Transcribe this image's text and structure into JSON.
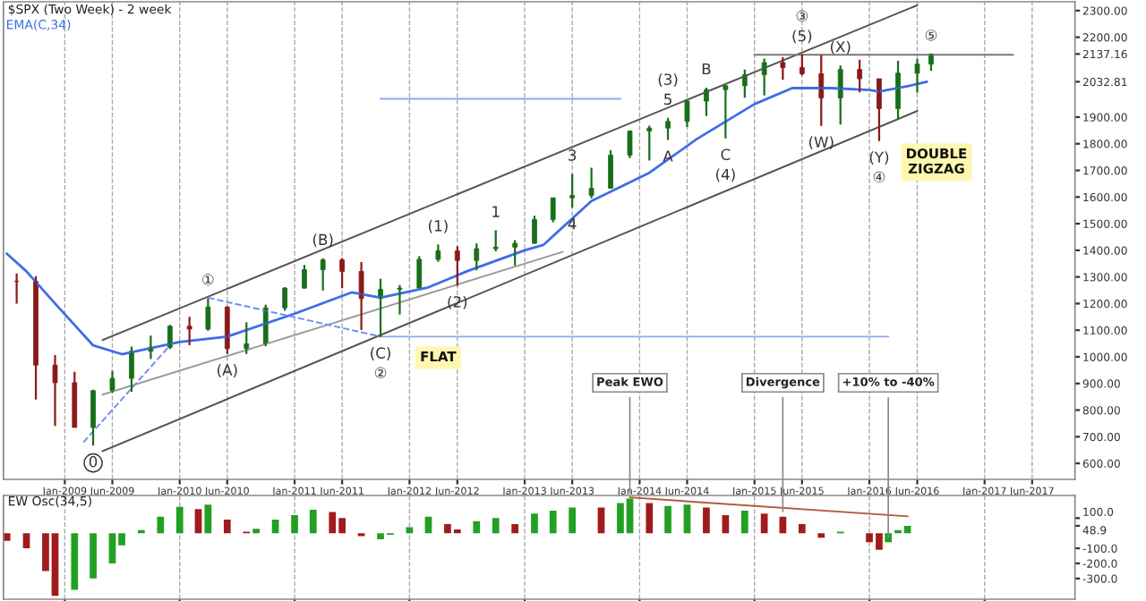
{
  "chart_data": [
    {
      "type": "candlestick",
      "title": "$SPX (Two Week) - 2 week",
      "x": [
        "2008-08",
        "2008-10",
        "2008-12",
        "2009-02",
        "2009-04",
        "2009-06",
        "2009-08",
        "2009-10",
        "2009-12",
        "2010-02",
        "2010-04",
        "2010-06",
        "2010-08",
        "2010-10",
        "2010-12",
        "2011-02",
        "2011-04",
        "2011-06",
        "2011-08",
        "2011-10",
        "2011-12",
        "2012-02",
        "2012-04",
        "2012-06",
        "2012-08",
        "2012-10",
        "2012-12",
        "2013-02",
        "2013-04",
        "2013-06",
        "2013-08",
        "2013-10",
        "2013-12",
        "2014-02",
        "2014-04",
        "2014-06",
        "2014-08",
        "2014-10",
        "2014-12",
        "2015-02",
        "2015-04",
        "2015-06",
        "2015-08",
        "2015-10",
        "2015-12",
        "2016-02",
        "2016-04",
        "2016-06",
        "2016-07-15"
      ],
      "ohlc": [
        [
          1284,
          1313,
          1200,
          1283
        ],
        [
          1283,
          1303,
          840,
          969
        ],
        [
          969,
          1007,
          741,
          903
        ],
        [
          903,
          944,
          735,
          735
        ],
        [
          735,
          877,
          667,
          873
        ],
        [
          873,
          947,
          866,
          919
        ],
        [
          919,
          1039,
          869,
          1021
        ],
        [
          1021,
          1080,
          992,
          1036
        ],
        [
          1036,
          1120,
          1029,
          1115
        ],
        [
          1115,
          1150,
          1044,
          1104
        ],
        [
          1104,
          1220,
          1098,
          1187
        ],
        [
          1187,
          1190,
          1011,
          1031
        ],
        [
          1031,
          1130,
          1011,
          1049
        ],
        [
          1049,
          1196,
          1040,
          1184
        ],
        [
          1184,
          1262,
          1173,
          1258
        ],
        [
          1258,
          1345,
          1257,
          1327
        ],
        [
          1327,
          1370,
          1249,
          1364
        ],
        [
          1364,
          1370,
          1258,
          1321
        ],
        [
          1321,
          1356,
          1101,
          1219
        ],
        [
          1219,
          1293,
          1075,
          1253
        ],
        [
          1253,
          1270,
          1159,
          1258
        ],
        [
          1258,
          1378,
          1258,
          1366
        ],
        [
          1366,
          1422,
          1357,
          1398
        ],
        [
          1398,
          1415,
          1267,
          1362
        ],
        [
          1362,
          1426,
          1325,
          1406
        ],
        [
          1406,
          1475,
          1396,
          1412
        ],
        [
          1412,
          1438,
          1343,
          1426
        ],
        [
          1426,
          1530,
          1426,
          1515
        ],
        [
          1515,
          1598,
          1505,
          1597
        ],
        [
          1597,
          1687,
          1560,
          1606
        ],
        [
          1606,
          1710,
          1595,
          1633
        ],
        [
          1633,
          1776,
          1633,
          1757
        ],
        [
          1757,
          1849,
          1746,
          1848
        ],
        [
          1848,
          1868,
          1737,
          1859
        ],
        [
          1859,
          1897,
          1814,
          1884
        ],
        [
          1884,
          1968,
          1863,
          1960
        ],
        [
          1960,
          2011,
          1904,
          2003
        ],
        [
          2003,
          2019,
          1820,
          2018
        ],
        [
          2018,
          2079,
          1973,
          2059
        ],
        [
          2059,
          2120,
          1981,
          2105
        ],
        [
          2105,
          2125,
          2040,
          2086
        ],
        [
          2086,
          2135,
          2057,
          2063
        ],
        [
          2063,
          2133,
          1867,
          1972
        ],
        [
          1972,
          2094,
          1872,
          2079
        ],
        [
          2079,
          2116,
          1993,
          2044
        ],
        [
          2044,
          2044,
          1810,
          1932
        ],
        [
          1932,
          2111,
          1891,
          2065
        ],
        [
          2065,
          2120,
          1992,
          2099
        ],
        [
          2099,
          2137.16,
          2074,
          2137.16
        ]
      ],
      "colors": [
        "#8b1a1a",
        "#8b1a1a",
        "#8b1a1a",
        "#8b1a1a",
        "#1a6e1a",
        "#1a6e1a",
        "#1a6e1a",
        "#1a6e1a",
        "#1a6e1a",
        "#8b1a1a",
        "#1a6e1a",
        "#8b1a1a",
        "#1a6e1a",
        "#1a6e1a",
        "#1a6e1a",
        "#1a6e1a",
        "#1a6e1a",
        "#8b1a1a",
        "#8b1a1a",
        "#1a6e1a",
        "#1a6e1a",
        "#1a6e1a",
        "#1a6e1a",
        "#8b1a1a",
        "#1a6e1a",
        "#1a6e1a",
        "#1a6e1a",
        "#1a6e1a",
        "#1a6e1a",
        "#1a6e1a",
        "#1a6e1a",
        "#1a6e1a",
        "#1a6e1a",
        "#1a6e1a",
        "#1a6e1a",
        "#1a6e1a",
        "#1a6e1a",
        "#1a6e1a",
        "#1a6e1a",
        "#1a6e1a",
        "#8b1a1a",
        "#8b1a1a",
        "#8b1a1a",
        "#1a6e1a",
        "#8b1a1a",
        "#8b1a1a",
        "#1a6e1a",
        "#1a6e1a",
        "#1a6e1a"
      ],
      "series": [
        {
          "type": "line",
          "name": "EMA(C,34)",
          "color": "#3c6ee6",
          "x": [
            "2008-07",
            "2008-09",
            "2008-12",
            "2009-04",
            "2009-07",
            "2010-01",
            "2010-06",
            "2011-01",
            "2011-07",
            "2011-10",
            "2012-03",
            "2012-07",
            "2013-01",
            "2013-03",
            "2013-08",
            "2014-02",
            "2014-07",
            "2015-01",
            "2015-05",
            "2015-09",
            "2016-01",
            "2016-02",
            "2016-05",
            "2016-07"
          ],
          "values": [
            1387,
            1321,
            1200,
            1043,
            1010,
            1056,
            1076,
            1162,
            1242,
            1222,
            1261,
            1321,
            1400,
            1420,
            1585,
            1691,
            1817,
            1949,
            2009,
            2009,
            2002,
            1996,
            2016,
            2032.81
          ]
        },
        {
          "type": "line",
          "color": "#555555",
          "x": [
            "2009-05",
            "2016-06"
          ],
          "values": [
            1063,
            2320
          ]
        },
        {
          "type": "line",
          "color": "#555555",
          "x": [
            "2009-05",
            "2016-06"
          ],
          "values": [
            646,
            1923
          ]
        },
        {
          "type": "line",
          "color": "#999999",
          "x": [
            "2009-05",
            "2013-05"
          ],
          "values": [
            858,
            1394
          ]
        },
        {
          "type": "line",
          "color": "#777777",
          "x": [
            "2015-01",
            "2017-04"
          ],
          "values": [
            2134,
            2134
          ]
        },
        {
          "type": "line",
          "color": "#8fa8f0",
          "x": [
            "2011-10",
            "2013-11"
          ],
          "values": [
            1969,
            1969
          ]
        },
        {
          "type": "line",
          "color": "#8fa8f0",
          "x": [
            "2011-10",
            "2016-03"
          ],
          "values": [
            1076,
            1076
          ]
        },
        {
          "type": "line",
          "color": "#6f8ff0",
          "line_style": "dashed",
          "x": [
            "2009-03",
            "2009-12"
          ],
          "values": [
            679,
            1043
          ]
        },
        {
          "type": "line",
          "color": "#6f8ff0",
          "line_style": "dashed",
          "x": [
            "2010-04",
            "2011-10"
          ],
          "values": [
            1222,
            1076
          ]
        }
      ],
      "annotations": [
        {
          "text": "0",
          "x": "2009-04",
          "y": 667
        },
        {
          "text": "①",
          "x": "2010-04",
          "y": 1220
        },
        {
          "text": "(A)",
          "x": "2010-06",
          "y": 1011
        },
        {
          "text": "(B)",
          "x": "2011-04",
          "y": 1370
        },
        {
          "text": "(C)",
          "x": "2011-10",
          "y": 1075
        },
        {
          "text": "②",
          "x": "2011-10",
          "y": 1075
        },
        {
          "text": "(1)",
          "x": "2012-04",
          "y": 1422
        },
        {
          "text": "(2)",
          "x": "2012-06",
          "y": 1267
        },
        {
          "text": "1",
          "x": "2012-10",
          "y": 1475
        },
        {
          "text": "3",
          "x": "2013-06",
          "y": 1687
        },
        {
          "text": "4",
          "x": "2013-06",
          "y": 1560
        },
        {
          "text": "5",
          "x": "2014-04",
          "y": 1897
        },
        {
          "text": "(3)",
          "x": "2014-04",
          "y": 1897
        },
        {
          "text": "A",
          "x": "2014-04",
          "y": 1814
        },
        {
          "text": "B",
          "x": "2014-08",
          "y": 2011
        },
        {
          "text": "C",
          "x": "2014-10",
          "y": 1820
        },
        {
          "text": "(4)",
          "x": "2014-10",
          "y": 1820
        },
        {
          "text": "(5)",
          "x": "2015-06",
          "y": 2135
        },
        {
          "text": "③",
          "x": "2015-06",
          "y": 2135
        },
        {
          "text": "(X)",
          "x": "2015-10",
          "y": 2094
        },
        {
          "text": "(W)",
          "x": "2015-08",
          "y": 1867
        },
        {
          "text": "(Y)",
          "x": "2016-02",
          "y": 1810
        },
        {
          "text": "④",
          "x": "2016-02",
          "y": 1810
        },
        {
          "text": "⑤",
          "x": "2016-07-15",
          "y": 2137.16
        },
        {
          "text": "FLAT",
          "x": "2012-04",
          "y": 997
        },
        {
          "text": "DOUBLE\nZIGZAG",
          "x": "2016-08",
          "y": 1731
        }
      ],
      "xlim": [
        "2008-06-20",
        "2017-10-15"
      ],
      "xticks": [
        {
          "value": "2009-01-01",
          "label": "Jan-2009"
        },
        {
          "value": "2009-06-01",
          "label": "Jun-2009"
        },
        {
          "value": "2010-01-01",
          "label": "Jan-2010"
        },
        {
          "value": "2010-06-01",
          "label": "Jun-2010"
        },
        {
          "value": "2011-01-01",
          "label": "Jan-2011"
        },
        {
          "value": "2011-06-01",
          "label": "Jun-2011"
        },
        {
          "value": "2012-01-01",
          "label": "Jan-2012"
        },
        {
          "value": "2012-06-01",
          "label": "Jun-2012"
        },
        {
          "value": "2013-01-01",
          "label": "Jan-2013"
        },
        {
          "value": "2013-06-01",
          "label": "Jun-2013"
        },
        {
          "value": "2014-01-01",
          "label": "Jan-2014"
        },
        {
          "value": "2014-06-01",
          "label": "Jun-2014"
        },
        {
          "value": "2015-01-01",
          "label": "Jan-2015"
        },
        {
          "value": "2015-06-01",
          "label": "Jun-2015"
        },
        {
          "value": "2016-01-01",
          "label": "Jan-2016"
        },
        {
          "value": "2016-06-01",
          "label": "Jun-2016"
        },
        {
          "value": "2017-01-01",
          "label": "Jan-2017"
        },
        {
          "value": "2017-06-01",
          "label": "Jun-2017"
        }
      ],
      "ylim": [
        540,
        2333
      ],
      "yticks": [
        {
          "value": 600,
          "label": "600.00"
        },
        {
          "value": 700,
          "label": "700.00"
        },
        {
          "value": 800,
          "label": "800.00"
        },
        {
          "value": 900,
          "label": "900.00"
        },
        {
          "value": 1000,
          "label": "1000.00"
        },
        {
          "value": 1100,
          "label": "1100.00"
        },
        {
          "value": 1200,
          "label": "1200.00"
        },
        {
          "value": 1300,
          "label": "1300.00"
        },
        {
          "value": 1400,
          "label": "1400.00"
        },
        {
          "value": 1500,
          "label": "1500.00"
        },
        {
          "value": 1600,
          "label": "1600.00"
        },
        {
          "value": 1700,
          "label": "1700.00"
        },
        {
          "value": 1800,
          "label": "1800.00"
        },
        {
          "value": 1900,
          "label": "1900.00"
        },
        {
          "value": 2032.81,
          "label": "2032.81"
        },
        {
          "value": 2137.16,
          "label": "2137.16"
        },
        {
          "value": 2200,
          "label": "2200.00"
        },
        {
          "value": 2300,
          "label": "2300.00"
        }
      ],
      "grid": "x",
      "legend": "top left"
    },
    {
      "type": "bar",
      "title": "EW Osc(34,5)",
      "x": [
        "2008-07",
        "2008-09",
        "2008-11",
        "2008-12",
        "2009-02",
        "2009-04",
        "2009-06",
        "2009-07",
        "2009-09",
        "2009-11",
        "2010-01",
        "2010-03",
        "2010-04",
        "2010-06",
        "2010-08",
        "2010-09",
        "2010-11",
        "2011-01",
        "2011-03",
        "2011-05",
        "2011-06",
        "2011-08",
        "2011-10",
        "2011-11",
        "2012-01",
        "2012-03",
        "2012-05",
        "2012-06",
        "2012-08",
        "2012-10",
        "2012-12",
        "2013-02",
        "2013-04",
        "2013-06",
        "2013-09",
        "2013-11",
        "2013-12",
        "2014-02",
        "2014-04",
        "2014-06",
        "2014-08",
        "2014-10",
        "2014-12",
        "2015-02",
        "2015-04",
        "2015-06",
        "2015-08",
        "2015-10",
        "2016-01",
        "2016-02",
        "2016-03",
        "2016-04",
        "2016-05"
      ],
      "values": [
        -50,
        -100,
        -250,
        -415,
        -375,
        -300,
        -200,
        -80,
        20,
        110,
        175,
        160,
        190,
        90,
        10,
        30,
        90,
        120,
        155,
        140,
        100,
        -20,
        -40,
        -10,
        40,
        110,
        60,
        25,
        80,
        100,
        60,
        130,
        150,
        170,
        170,
        200,
        230,
        200,
        180,
        190,
        170,
        120,
        150,
        130,
        110,
        60,
        -30,
        10,
        -60,
        -110,
        -60,
        20,
        48.9
      ],
      "colors": [
        "#a01c1c",
        "#a01c1c",
        "#a01c1c",
        "#a01c1c",
        "#22a022",
        "#22a022",
        "#22a022",
        "#22a022",
        "#22a022",
        "#22a022",
        "#22a022",
        "#a01c1c",
        "#22a022",
        "#a01c1c",
        "#a01c1c",
        "#22a022",
        "#22a022",
        "#22a022",
        "#22a022",
        "#a01c1c",
        "#a01c1c",
        "#a01c1c",
        "#22a022",
        "#22a022",
        "#22a022",
        "#22a022",
        "#a01c1c",
        "#a01c1c",
        "#22a022",
        "#22a022",
        "#a01c1c",
        "#22a022",
        "#22a022",
        "#22a022",
        "#a01c1c",
        "#22a022",
        "#22a022",
        "#a01c1c",
        "#22a022",
        "#22a022",
        "#a01c1c",
        "#a01c1c",
        "#22a022",
        "#a01c1c",
        "#a01c1c",
        "#a01c1c",
        "#a01c1c",
        "#22a022",
        "#a01c1c",
        "#a01c1c",
        "#22a022",
        "#22a022",
        "#22a022"
      ],
      "series": [
        {
          "type": "line",
          "color": "#b05a3c",
          "x": [
            "2013-12",
            "2016-05"
          ],
          "values": [
            237,
            112
          ]
        }
      ],
      "annotations": [
        {
          "text": "Peak EWO",
          "x": "2013-12",
          "y": 230
        },
        {
          "text": "Divergence",
          "x": "2015-04",
          "y": 110
        },
        {
          "text": "+10% to -40%",
          "x": "2016-03",
          "y": -60
        }
      ],
      "xlim": [
        "2008-06-20",
        "2017-10-15"
      ],
      "xticks": [
        {
          "value": "2009-01-01",
          "label": null
        },
        {
          "value": "2010-01-01",
          "label": null
        },
        {
          "value": "2011-01-01",
          "label": null
        },
        {
          "value": "2012-01-01",
          "label": null
        },
        {
          "value": "2013-01-01",
          "label": null
        },
        {
          "value": "2014-01-01",
          "label": null
        },
        {
          "value": "2015-01-01",
          "label": null
        },
        {
          "value": "2016-01-01",
          "label": null
        },
        {
          "value": "2017-01-01",
          "label": null
        }
      ],
      "ylim": [
        -437,
        250
      ],
      "yticks": [
        {
          "value": -300,
          "label": "-300.0"
        },
        {
          "value": -200,
          "label": "-200.0"
        },
        {
          "value": -100,
          "label": "-100.0"
        },
        {
          "value": 48.9,
          "label": "48.9"
        },
        {
          "value": 100,
          "label": "100.0"
        }
      ],
      "grid": "x",
      "tick_labels": "y"
    }
  ]
}
